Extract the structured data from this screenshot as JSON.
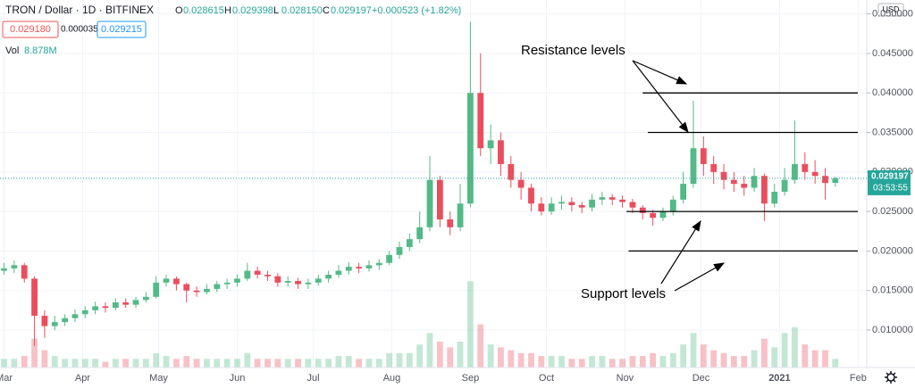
{
  "chart_data": {
    "type": "candlestick",
    "symbol": "TRON / Dollar · 1D · BITFINEX",
    "ohlc_keys": [
      "O",
      "H",
      "L",
      "C"
    ],
    "ohlc_values": [
      "0.028615",
      "0.029398",
      "0.028150",
      "0.029197"
    ],
    "change": "+0.000523 (+1.82%)",
    "bid": "0.029180",
    "spread": "0.000035",
    "ask": "0.029215",
    "volume_label": "Vol",
    "volume_value": "8.878M",
    "currency": "USD",
    "last_price": {
      "value": 0.029197,
      "label": "0.029197"
    },
    "countdown": "03:53:55",
    "up_color": "#53b987",
    "down_color": "#eb4d5c",
    "xlim": [
      -0.4,
      85.1
    ],
    "xticks": [
      {
        "value": 0,
        "label": "Mar"
      },
      {
        "value": 7.75,
        "label": "Apr"
      },
      {
        "value": 15.25,
        "label": "May"
      },
      {
        "value": 23,
        "label": "Jun"
      },
      {
        "value": 30.5,
        "label": "Jul"
      },
      {
        "value": 38.25,
        "label": "Aug"
      },
      {
        "value": 46,
        "label": "Sep"
      },
      {
        "value": 53.5,
        "label": "Oct"
      },
      {
        "value": 61.25,
        "label": "Nov"
      },
      {
        "value": 68.75,
        "label": "Dec"
      },
      {
        "value": 76.5,
        "label": "2021"
      },
      {
        "value": 84.25,
        "label": "Feb"
      }
    ],
    "ylim": [
      0.00526,
      0.05176
    ],
    "yticks": [
      {
        "value": 0.01,
        "label": "0.010000"
      },
      {
        "value": 0.015,
        "label": "0.015000"
      },
      {
        "value": 0.02,
        "label": "0.020000"
      },
      {
        "value": 0.025,
        "label": "0.025000"
      },
      {
        "value": 0.03,
        "label": "0.030000"
      },
      {
        "value": 0.035,
        "label": "0.035000"
      },
      {
        "value": 0.04,
        "label": "0.040000"
      },
      {
        "value": 0.045,
        "label": "0.045000"
      },
      {
        "value": 0.05,
        "label": "0.050000"
      }
    ],
    "grid": true,
    "open": [
      0.0175,
      0.0178,
      0.0182,
      0.0165,
      0.0118,
      0.0105,
      0.011,
      0.0115,
      0.012,
      0.0125,
      0.013,
      0.0128,
      0.0135,
      0.0132,
      0.0138,
      0.0142,
      0.016,
      0.0165,
      0.0158,
      0.015,
      0.0148,
      0.0152,
      0.0158,
      0.016,
      0.0165,
      0.0175,
      0.017,
      0.0168,
      0.016,
      0.0162,
      0.0158,
      0.016,
      0.0165,
      0.017,
      0.0175,
      0.018,
      0.0178,
      0.0182,
      0.0185,
      0.0195,
      0.0205,
      0.0215,
      0.023,
      0.029,
      0.024,
      0.023,
      0.026,
      0.04,
      0.033,
      0.034,
      0.031,
      0.029,
      0.028,
      0.026,
      0.025,
      0.026,
      0.0262,
      0.0258,
      0.0255,
      0.0265,
      0.0268,
      0.0265,
      0.0262,
      0.0255,
      0.0248,
      0.0242,
      0.025,
      0.0265,
      0.0285,
      0.033,
      0.031,
      0.03,
      0.029,
      0.0285,
      0.028,
      0.0295,
      0.026,
      0.0275,
      0.029,
      0.031,
      0.03,
      0.0295,
      0.028615
    ],
    "high": [
      0.0185,
      0.0188,
      0.0185,
      0.0168,
      0.0125,
      0.0118,
      0.012,
      0.0126,
      0.013,
      0.0136,
      0.0135,
      0.014,
      0.014,
      0.0142,
      0.0148,
      0.0168,
      0.017,
      0.0168,
      0.016,
      0.0155,
      0.0158,
      0.0162,
      0.0165,
      0.017,
      0.0185,
      0.018,
      0.0175,
      0.0172,
      0.0168,
      0.0166,
      0.0165,
      0.017,
      0.0175,
      0.0182,
      0.0186,
      0.0185,
      0.0188,
      0.019,
      0.02,
      0.0212,
      0.0222,
      0.025,
      0.032,
      0.0295,
      0.025,
      0.0285,
      0.049,
      0.045,
      0.036,
      0.035,
      0.032,
      0.03,
      0.0285,
      0.0268,
      0.0268,
      0.027,
      0.0268,
      0.0262,
      0.0272,
      0.0275,
      0.0272,
      0.027,
      0.0266,
      0.0258,
      0.0252,
      0.0255,
      0.027,
      0.03,
      0.039,
      0.0345,
      0.032,
      0.031,
      0.03,
      0.0295,
      0.0305,
      0.0298,
      0.0285,
      0.0305,
      0.0365,
      0.0325,
      0.0315,
      0.0305,
      0.029398
    ],
    "low": [
      0.017,
      0.0172,
      0.016,
      0.008,
      0.009,
      0.01,
      0.0105,
      0.011,
      0.0115,
      0.012,
      0.0122,
      0.0125,
      0.0128,
      0.0128,
      0.0135,
      0.014,
      0.0155,
      0.015,
      0.0135,
      0.0142,
      0.0145,
      0.0148,
      0.0152,
      0.0155,
      0.0162,
      0.0165,
      0.0162,
      0.0155,
      0.0155,
      0.0152,
      0.0152,
      0.0156,
      0.016,
      0.0166,
      0.017,
      0.0172,
      0.0174,
      0.0176,
      0.0182,
      0.019,
      0.02,
      0.021,
      0.0225,
      0.023,
      0.022,
      0.0225,
      0.0255,
      0.032,
      0.031,
      0.0295,
      0.028,
      0.0265,
      0.025,
      0.0245,
      0.0246,
      0.0252,
      0.025,
      0.0248,
      0.025,
      0.0258,
      0.0258,
      0.0255,
      0.0248,
      0.024,
      0.0232,
      0.0238,
      0.0245,
      0.026,
      0.028,
      0.0295,
      0.0285,
      0.0278,
      0.0275,
      0.027,
      0.0275,
      0.0238,
      0.0255,
      0.027,
      0.0285,
      0.029,
      0.0285,
      0.0265,
      0.02815
    ],
    "close": [
      0.0178,
      0.0182,
      0.0165,
      0.0118,
      0.0105,
      0.011,
      0.0115,
      0.012,
      0.0125,
      0.013,
      0.0128,
      0.0135,
      0.0132,
      0.0138,
      0.0142,
      0.016,
      0.0165,
      0.0158,
      0.015,
      0.0148,
      0.0152,
      0.0158,
      0.016,
      0.0165,
      0.0175,
      0.017,
      0.0168,
      0.016,
      0.0162,
      0.0158,
      0.016,
      0.0165,
      0.017,
      0.0175,
      0.018,
      0.0178,
      0.0182,
      0.0185,
      0.0195,
      0.0205,
      0.0215,
      0.023,
      0.029,
      0.024,
      0.023,
      0.026,
      0.04,
      0.033,
      0.034,
      0.031,
      0.029,
      0.028,
      0.026,
      0.025,
      0.026,
      0.0262,
      0.0258,
      0.0255,
      0.0265,
      0.0268,
      0.0265,
      0.0262,
      0.0255,
      0.0248,
      0.0242,
      0.025,
      0.0265,
      0.0285,
      0.033,
      0.031,
      0.03,
      0.029,
      0.0285,
      0.028,
      0.0295,
      0.026,
      0.0275,
      0.029,
      0.031,
      0.03,
      0.0295,
      0.0286,
      0.029197
    ],
    "volume": [
      3,
      3,
      4,
      10,
      6,
      4,
      3,
      3,
      3,
      3,
      2,
      3,
      3,
      3,
      3,
      5,
      4,
      3,
      4,
      3,
      3,
      3,
      3,
      3,
      5,
      3,
      3,
      3,
      3,
      3,
      3,
      3,
      3,
      4,
      4,
      3,
      3,
      3,
      5,
      5,
      5,
      8,
      12,
      9,
      7,
      9,
      30,
      15,
      8,
      7,
      6,
      5,
      5,
      4,
      4,
      4,
      3,
      3,
      4,
      4,
      3,
      3,
      4,
      4,
      5,
      4,
      5,
      8,
      12,
      8,
      6,
      5,
      4,
      4,
      6,
      10,
      7,
      12,
      14,
      8,
      6,
      6,
      3
    ],
    "volume_max": 31,
    "levels": [
      {
        "value": 0.04,
        "start": 63
      },
      {
        "value": 0.035,
        "start": 63.5
      },
      {
        "value": 0.025,
        "start": 61.4
      },
      {
        "value": 0.02,
        "start": 61.6
      }
    ],
    "annotations": [
      "Resistance levels",
      "Support levels"
    ]
  }
}
